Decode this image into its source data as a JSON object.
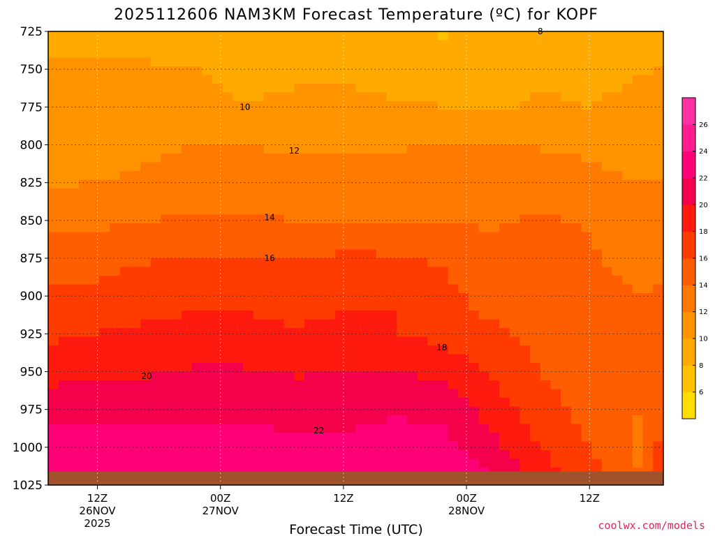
{
  "chart_data": {
    "type": "heatmap",
    "title": "2025112606 NAM3KM Forecast Temperature (ºC) for KOPF",
    "xlabel": "Forecast Time (UTC)",
    "ylabel": "",
    "credit": "coolwx.com/models",
    "y_axis": {
      "unit": "hPa",
      "range": [
        725,
        1025
      ],
      "inverted": true,
      "ticks": [
        "725",
        "750",
        "775",
        "800",
        "825",
        "850",
        "875",
        "900",
        "925",
        "950",
        "975",
        "1000",
        "1025"
      ]
    },
    "x_axis": {
      "range_hours": [
        6,
        81
      ],
      "ticks": [
        {
          "hour": 12,
          "line1": "12Z",
          "line2": "26NOV",
          "line3": "2025"
        },
        {
          "hour": 27,
          "line1": "00Z",
          "line2": "27NOV",
          "line3": ""
        },
        {
          "hour": 42,
          "line1": "12Z",
          "line2": "",
          "line3": ""
        },
        {
          "hour": 57,
          "line1": "00Z",
          "line2": "28NOV",
          "line3": ""
        },
        {
          "hour": 72,
          "line1": "12Z",
          "line2": "",
          "line3": ""
        }
      ]
    },
    "grid": true,
    "levels_hpa": [
      725,
      750,
      775,
      800,
      825,
      850,
      875,
      900,
      925,
      950,
      975,
      1000,
      1015
    ],
    "series": [
      {
        "name": "temperature_c",
        "x_hours": [
          6,
          12,
          18,
          24,
          30,
          36,
          42,
          48,
          54,
          60,
          66,
          72,
          78,
          81
        ],
        "profiles": [
          [
            9.4,
            9.4,
            9.2,
            9.2,
            9.2,
            9.2,
            9.0,
            8.6,
            7.8,
            8.4,
            8.8,
            8.6,
            9.0,
            9.2
          ],
          [
            10.4,
            10.4,
            10.2,
            10.0,
            9.8,
            9.8,
            9.7,
            9.4,
            9.3,
            9.5,
            9.7,
            9.6,
            9.9,
            10.1
          ],
          [
            10.6,
            10.4,
            10.4,
            10.2,
            10.0,
            10.2,
            10.4,
            10.2,
            10.0,
            9.8,
            10.2,
            10.0,
            10.4,
            10.6
          ],
          [
            10.8,
            10.6,
            11.4,
            12.0,
            11.9,
            11.8,
            11.6,
            11.8,
            12.0,
            12.2,
            11.8,
            11.6,
            10.8,
            11.0
          ],
          [
            11.8,
            12.0,
            12.6,
            13.2,
            13.0,
            13.0,
            12.8,
            13.0,
            13.0,
            13.4,
            13.2,
            12.6,
            12.0,
            12.0
          ],
          [
            13.4,
            13.6,
            14.0,
            14.2,
            14.2,
            14.0,
            14.0,
            14.0,
            13.8,
            13.8,
            14.2,
            13.8,
            13.0,
            13.2
          ],
          [
            15.0,
            15.2,
            15.8,
            16.2,
            16.2,
            15.8,
            16.4,
            16.2,
            15.8,
            14.6,
            15.0,
            14.2,
            13.4,
            13.8
          ],
          [
            16.4,
            16.6,
            17.2,
            17.6,
            17.6,
            17.2,
            17.8,
            17.8,
            16.6,
            15.2,
            15.2,
            14.6,
            14.0,
            14.2
          ],
          [
            17.6,
            18.0,
            18.4,
            18.6,
            18.6,
            18.2,
            18.4,
            18.2,
            17.2,
            16.4,
            15.6,
            15.0,
            14.6,
            15.0
          ],
          [
            19.2,
            19.6,
            19.8,
            20.2,
            20.2,
            19.8,
            20.0,
            20.2,
            19.4,
            17.6,
            16.0,
            15.0,
            14.2,
            15.0
          ],
          [
            21.2,
            21.6,
            21.4,
            21.6,
            21.6,
            21.2,
            21.2,
            21.8,
            21.4,
            19.2,
            16.8,
            15.2,
            14.0,
            15.6
          ],
          [
            23.0,
            23.0,
            22.8,
            22.8,
            22.8,
            22.6,
            22.6,
            22.8,
            22.8,
            20.8,
            18.0,
            16.0,
            13.6,
            16.8
          ],
          [
            23.8,
            23.8,
            23.6,
            23.6,
            23.6,
            23.6,
            23.6,
            23.6,
            23.6,
            21.8,
            18.8,
            16.6,
            14.0,
            17.6
          ]
        ]
      }
    ],
    "contour_levels": [
      6,
      8,
      10,
      12,
      14,
      16,
      18,
      20,
      22,
      24,
      26
    ],
    "contour_labels": [
      "8",
      "10",
      "12",
      "14",
      "16",
      "18",
      "20",
      "22"
    ],
    "colorbar": {
      "ticks": [
        "6",
        "8",
        "10",
        "12",
        "14",
        "16",
        "18",
        "20",
        "22",
        "24",
        "26"
      ],
      "colors": [
        "#ffdd00",
        "#ffc100",
        "#ffaa00",
        "#ff9300",
        "#ff7a00",
        "#ff5e00",
        "#ff3b00",
        "#ff1a10",
        "#f5004a",
        "#ff0077",
        "#ff1c8e",
        "#ff2fa4"
      ]
    },
    "ground_color": "#a0522d"
  }
}
